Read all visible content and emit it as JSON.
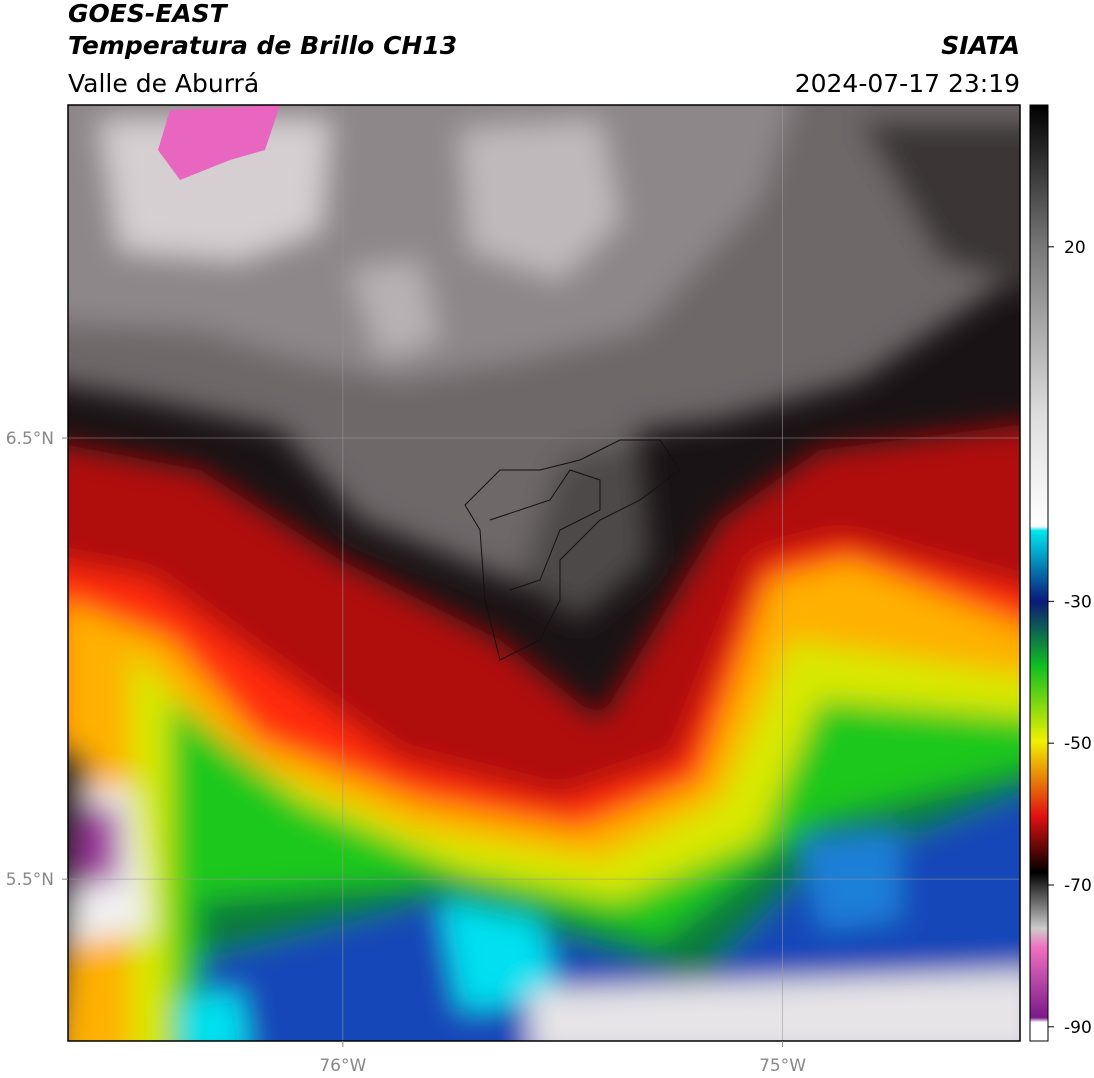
{
  "header": {
    "title": "GOES-EAST",
    "subtitle": "Temperatura de Brillo CH13",
    "region": "Valle de Aburrá",
    "source": "SIATA",
    "datetime": "2024-07-17 23:19"
  },
  "map": {
    "xlim": [
      -76.625,
      -74.46
    ],
    "ylim": [
      5.133,
      7.255
    ],
    "xticks": [
      {
        "value": -76,
        "label": "76°W"
      },
      {
        "value": -75,
        "label": "75°W"
      }
    ],
    "yticks": [
      {
        "value": 6.5,
        "label": "6.5°N"
      },
      {
        "value": 5.5,
        "label": "5.5°N"
      }
    ],
    "grid": true
  },
  "colorbar": {
    "lim": [
      -92,
      40
    ],
    "ticks": [
      20,
      -30,
      -50,
      -70,
      -90
    ]
  }
}
